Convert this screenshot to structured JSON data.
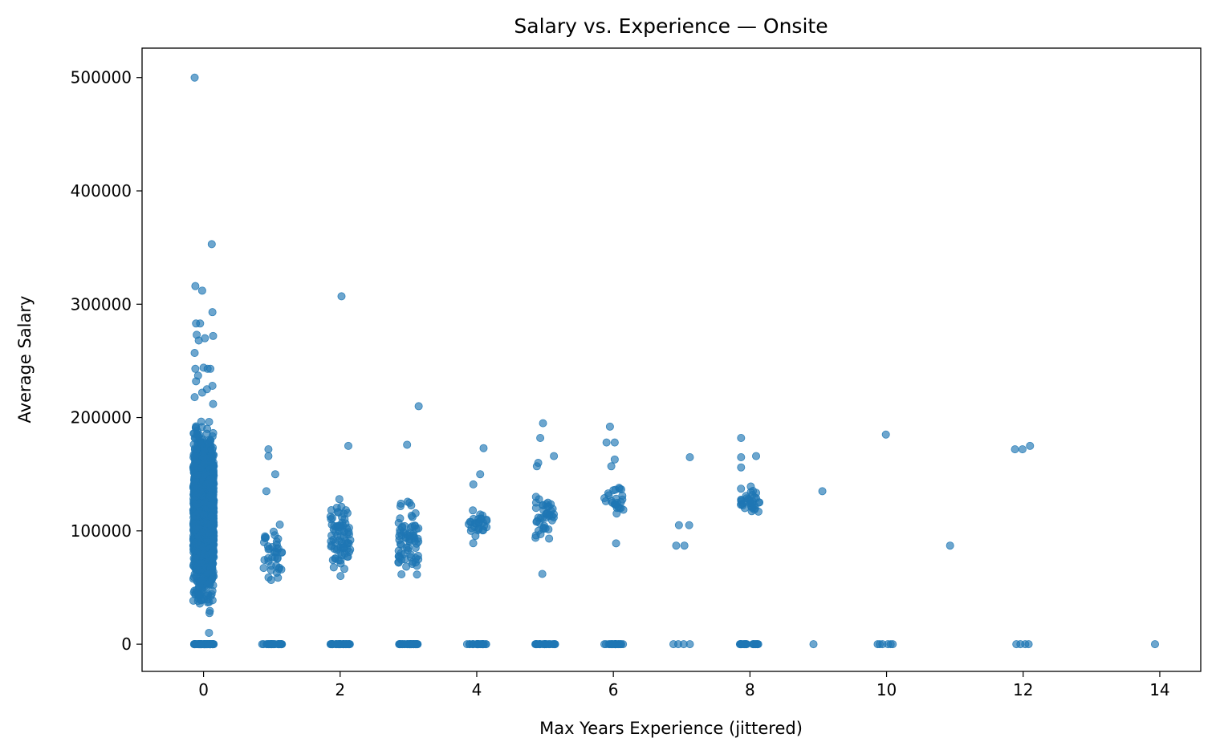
{
  "chart_data": {
    "type": "scatter",
    "title": "Salary vs. Experience — Onsite",
    "xlabel": "Max Years Experience (jittered)",
    "ylabel": "Average Salary",
    "xlim": [
      -0.9,
      14.6
    ],
    "ylim": [
      -24000,
      526000
    ],
    "xticks": [
      0,
      2,
      4,
      6,
      8,
      10,
      12,
      14
    ],
    "yticks": [
      0,
      100000,
      200000,
      300000,
      400000,
      500000
    ],
    "grid": false,
    "legend": "none",
    "point_color": "#1f77b4",
    "point_opacity": 0.65,
    "clusters": [
      {
        "x": 0,
        "count": 1800,
        "y_min": 20000,
        "y_max": 205000,
        "zeros": 60
      },
      {
        "x": 1,
        "count": 40,
        "y_min": 42000,
        "y_max": 120000,
        "zeros": 30
      },
      {
        "x": 2,
        "count": 75,
        "y_min": 43000,
        "y_max": 148000,
        "zeros": 35
      },
      {
        "x": 3,
        "count": 70,
        "y_min": 47000,
        "y_max": 135000,
        "zeros": 35
      },
      {
        "x": 4,
        "count": 30,
        "y_min": 87000,
        "y_max": 124000,
        "zeros": 25
      },
      {
        "x": 5,
        "count": 40,
        "y_min": 85000,
        "y_max": 142000,
        "zeros": 25
      },
      {
        "x": 6,
        "count": 25,
        "y_min": 108000,
        "y_max": 145000,
        "zeros": 22
      },
      {
        "x": 8,
        "count": 35,
        "y_min": 110000,
        "y_max": 145000,
        "zeros": 22
      }
    ],
    "points": [
      {
        "x": -0.13,
        "y": 500000
      },
      {
        "x": 0.12,
        "y": 353000
      },
      {
        "x": -0.12,
        "y": 316000
      },
      {
        "x": -0.02,
        "y": 312000
      },
      {
        "x": 0.13,
        "y": 293000
      },
      {
        "x": -0.11,
        "y": 283000
      },
      {
        "x": -0.05,
        "y": 283000
      },
      {
        "x": -0.1,
        "y": 273000
      },
      {
        "x": 0.14,
        "y": 272000
      },
      {
        "x": 0.02,
        "y": 270000
      },
      {
        "x": -0.07,
        "y": 268000
      },
      {
        "x": -0.13,
        "y": 257000
      },
      {
        "x": -0.12,
        "y": 243000
      },
      {
        "x": 0.0,
        "y": 244000
      },
      {
        "x": 0.06,
        "y": 243000
      },
      {
        "x": 0.1,
        "y": 243000
      },
      {
        "x": -0.08,
        "y": 237000
      },
      {
        "x": -0.11,
        "y": 232000
      },
      {
        "x": 0.13,
        "y": 228000
      },
      {
        "x": 0.05,
        "y": 225000
      },
      {
        "x": -0.02,
        "y": 222000
      },
      {
        "x": 0.14,
        "y": 212000
      },
      {
        "x": -0.13,
        "y": 218000
      },
      {
        "x": 0.08,
        "y": 10000
      },
      {
        "x": 0.95,
        "y": 172000
      },
      {
        "x": 0.95,
        "y": 166000
      },
      {
        "x": 1.05,
        "y": 150000
      },
      {
        "x": 0.92,
        "y": 135000
      },
      {
        "x": 2.02,
        "y": 307000
      },
      {
        "x": 2.12,
        "y": 175000
      },
      {
        "x": 3.15,
        "y": 210000
      },
      {
        "x": 2.98,
        "y": 176000
      },
      {
        "x": 4.1,
        "y": 173000
      },
      {
        "x": 4.05,
        "y": 150000
      },
      {
        "x": 3.95,
        "y": 141000
      },
      {
        "x": 4.97,
        "y": 195000
      },
      {
        "x": 4.93,
        "y": 182000
      },
      {
        "x": 5.13,
        "y": 166000
      },
      {
        "x": 4.9,
        "y": 160000
      },
      {
        "x": 4.88,
        "y": 157000
      },
      {
        "x": 4.96,
        "y": 62000
      },
      {
        "x": 5.95,
        "y": 192000
      },
      {
        "x": 5.9,
        "y": 178000
      },
      {
        "x": 6.02,
        "y": 178000
      },
      {
        "x": 6.02,
        "y": 163000
      },
      {
        "x": 5.97,
        "y": 157000
      },
      {
        "x": 6.04,
        "y": 89000
      },
      {
        "x": 6.92,
        "y": 87000
      },
      {
        "x": 6.96,
        "y": 105000
      },
      {
        "x": 7.04,
        "y": 87000
      },
      {
        "x": 7.12,
        "y": 165000
      },
      {
        "x": 7.11,
        "y": 105000
      },
      {
        "x": 7.87,
        "y": 182000
      },
      {
        "x": 7.87,
        "y": 165000
      },
      {
        "x": 8.09,
        "y": 166000
      },
      {
        "x": 7.87,
        "y": 156000
      },
      {
        "x": 9.06,
        "y": 135000
      },
      {
        "x": 9.99,
        "y": 185000
      },
      {
        "x": 10.93,
        "y": 87000
      },
      {
        "x": 11.88,
        "y": 172000
      },
      {
        "x": 11.99,
        "y": 172000
      },
      {
        "x": 12.1,
        "y": 175000
      },
      {
        "x": 8.93,
        "y": 0
      },
      {
        "x": 9.87,
        "y": 0
      },
      {
        "x": 9.9,
        "y": 0
      },
      {
        "x": 9.94,
        "y": 0
      },
      {
        "x": 10.02,
        "y": 0
      },
      {
        "x": 10.06,
        "y": 0
      },
      {
        "x": 10.09,
        "y": 0
      },
      {
        "x": 11.9,
        "y": 0
      },
      {
        "x": 11.96,
        "y": 0
      },
      {
        "x": 12.03,
        "y": 0
      },
      {
        "x": 12.08,
        "y": 0
      },
      {
        "x": 13.93,
        "y": 0
      },
      {
        "x": 6.88,
        "y": 0
      },
      {
        "x": 6.95,
        "y": 0
      },
      {
        "x": 7.03,
        "y": 0
      },
      {
        "x": 7.12,
        "y": 0
      }
    ]
  }
}
